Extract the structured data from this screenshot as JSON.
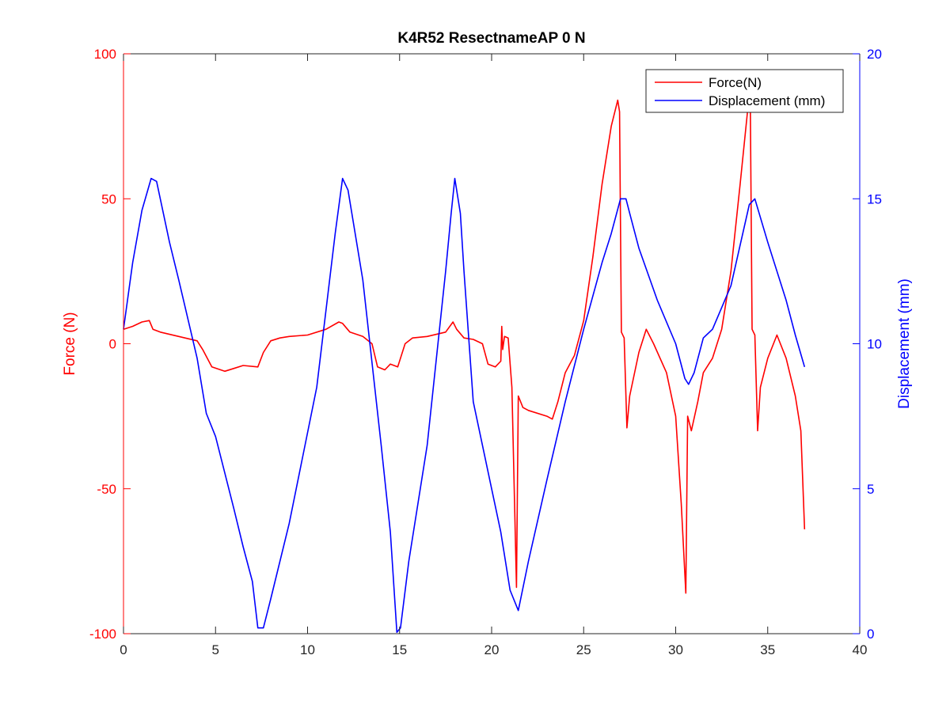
{
  "chart_data": {
    "type": "line",
    "title": "K4R52 ResectnameAP 0 N",
    "xlabel": "",
    "xlim": [
      0,
      40
    ],
    "x_ticks": [
      0,
      5,
      10,
      15,
      20,
      25,
      30,
      35,
      40
    ],
    "x_tick_labels": [
      "0",
      "5",
      "10",
      "15",
      "20",
      "25",
      "30",
      "35",
      "40"
    ],
    "grid": false,
    "legend_position": "top-right",
    "axes": [
      {
        "id": "left",
        "label": "Force (N)",
        "color": "#ff0000",
        "lim": [
          -100,
          100
        ],
        "ticks": [
          -100,
          -50,
          0,
          50,
          100
        ],
        "tick_labels": [
          "-100",
          "-50",
          "0",
          "50",
          "100"
        ]
      },
      {
        "id": "right",
        "label": "Displacement (mm)",
        "color": "#0000ff",
        "lim": [
          0,
          20
        ],
        "ticks": [
          0,
          5,
          10,
          15,
          20
        ],
        "tick_labels": [
          "0",
          "5",
          "10",
          "15",
          "20"
        ]
      }
    ],
    "series": [
      {
        "name": "Force(N)",
        "axis": "left",
        "color": "#ff0000",
        "points": [
          [
            0,
            5
          ],
          [
            0.5,
            6
          ],
          [
            1,
            7.5
          ],
          [
            1.4,
            8
          ],
          [
            1.6,
            5
          ],
          [
            2,
            4
          ],
          [
            3,
            2.5
          ],
          [
            4,
            1
          ],
          [
            4.3,
            -2
          ],
          [
            4.8,
            -8
          ],
          [
            5.5,
            -9.5
          ],
          [
            6,
            -8.5
          ],
          [
            6.5,
            -7.5
          ],
          [
            7.3,
            -8
          ],
          [
            7.6,
            -3
          ],
          [
            8,
            1
          ],
          [
            8.5,
            2
          ],
          [
            9,
            2.5
          ],
          [
            10,
            3
          ],
          [
            11,
            5
          ],
          [
            11.7,
            7.5
          ],
          [
            11.9,
            7
          ],
          [
            12.3,
            4
          ],
          [
            13,
            2.5
          ],
          [
            13.5,
            0
          ],
          [
            13.8,
            -8
          ],
          [
            14.2,
            -9
          ],
          [
            14.5,
            -7
          ],
          [
            14.9,
            -8
          ],
          [
            15.3,
            0
          ],
          [
            15.7,
            2
          ],
          [
            16.5,
            2.5
          ],
          [
            17.5,
            4
          ],
          [
            17.9,
            7.5
          ],
          [
            18.1,
            5
          ],
          [
            18.5,
            2
          ],
          [
            19,
            1.5
          ],
          [
            19.5,
            0
          ],
          [
            19.8,
            -7
          ],
          [
            20.2,
            -8
          ],
          [
            20.5,
            -6
          ],
          [
            20.55,
            6
          ],
          [
            20.6,
            -2
          ],
          [
            20.7,
            2.5
          ],
          [
            20.9,
            2
          ],
          [
            21.1,
            -15
          ],
          [
            21.35,
            -84
          ],
          [
            21.45,
            -18
          ],
          [
            21.7,
            -22
          ],
          [
            22,
            -23
          ],
          [
            23,
            -25
          ],
          [
            23.3,
            -26
          ],
          [
            23.6,
            -20
          ],
          [
            24,
            -10
          ],
          [
            24.5,
            -4
          ],
          [
            25,
            8
          ],
          [
            25.5,
            30
          ],
          [
            26,
            55
          ],
          [
            26.5,
            75
          ],
          [
            26.85,
            84
          ],
          [
            26.95,
            80
          ],
          [
            27.05,
            4
          ],
          [
            27.2,
            2
          ],
          [
            27.35,
            -29
          ],
          [
            27.5,
            -18
          ],
          [
            28,
            -3
          ],
          [
            28.4,
            5
          ],
          [
            28.8,
            0
          ],
          [
            29.5,
            -10
          ],
          [
            30,
            -25
          ],
          [
            30.3,
            -55
          ],
          [
            30.55,
            -86
          ],
          [
            30.65,
            -25
          ],
          [
            30.85,
            -30
          ],
          [
            31.2,
            -20
          ],
          [
            31.5,
            -10
          ],
          [
            32,
            -5
          ],
          [
            32.5,
            5
          ],
          [
            33,
            25
          ],
          [
            33.5,
            55
          ],
          [
            33.9,
            80
          ],
          [
            34.05,
            85
          ],
          [
            34.15,
            5
          ],
          [
            34.3,
            3
          ],
          [
            34.45,
            -30
          ],
          [
            34.6,
            -15
          ],
          [
            35,
            -5
          ],
          [
            35.5,
            3
          ],
          [
            36,
            -5
          ],
          [
            36.5,
            -18
          ],
          [
            36.8,
            -30
          ],
          [
            37,
            -64
          ]
        ]
      },
      {
        "name": "Displacement (mm)",
        "axis": "right",
        "color": "#0000ff",
        "points": [
          [
            0,
            10.5
          ],
          [
            0.5,
            12.8
          ],
          [
            1,
            14.6
          ],
          [
            1.5,
            15.7
          ],
          [
            1.8,
            15.6
          ],
          [
            2.5,
            13.5
          ],
          [
            3,
            12.2
          ],
          [
            4,
            9.5
          ],
          [
            4.5,
            7.6
          ],
          [
            5,
            6.8
          ],
          [
            6,
            4.3
          ],
          [
            6.5,
            3
          ],
          [
            7,
            1.8
          ],
          [
            7.3,
            0.2
          ],
          [
            7.6,
            0.2
          ],
          [
            8,
            1.2
          ],
          [
            9,
            3.8
          ],
          [
            10.5,
            8.5
          ],
          [
            11.5,
            13.8
          ],
          [
            11.9,
            15.7
          ],
          [
            12.2,
            15.3
          ],
          [
            13,
            12.2
          ],
          [
            14,
            6.5
          ],
          [
            14.5,
            3.5
          ],
          [
            14.85,
            0.05
          ],
          [
            15.05,
            0.2
          ],
          [
            15.5,
            2.5
          ],
          [
            16.5,
            6.5
          ],
          [
            17.5,
            12.5
          ],
          [
            17.8,
            14.5
          ],
          [
            18,
            15.7
          ],
          [
            18.3,
            14.5
          ],
          [
            18.5,
            12.5
          ],
          [
            19,
            8
          ],
          [
            19.5,
            6.5
          ],
          [
            20,
            5
          ],
          [
            20.5,
            3.5
          ],
          [
            21,
            1.5
          ],
          [
            21.45,
            0.8
          ],
          [
            22,
            2.5
          ],
          [
            23,
            5.3
          ],
          [
            24,
            8
          ],
          [
            25,
            10.5
          ],
          [
            26,
            12.8
          ],
          [
            26.5,
            13.8
          ],
          [
            27,
            15
          ],
          [
            27.3,
            15
          ],
          [
            27.5,
            14.5
          ],
          [
            28,
            13.3
          ],
          [
            29,
            11.5
          ],
          [
            30,
            10
          ],
          [
            30.5,
            8.8
          ],
          [
            30.7,
            8.6
          ],
          [
            31,
            9
          ],
          [
            31.5,
            10.2
          ],
          [
            32,
            10.5
          ],
          [
            33,
            12
          ],
          [
            34,
            14.8
          ],
          [
            34.3,
            15
          ],
          [
            35,
            13.5
          ],
          [
            36,
            11.5
          ],
          [
            36.5,
            10.3
          ],
          [
            37,
            9.2
          ]
        ]
      }
    ]
  }
}
